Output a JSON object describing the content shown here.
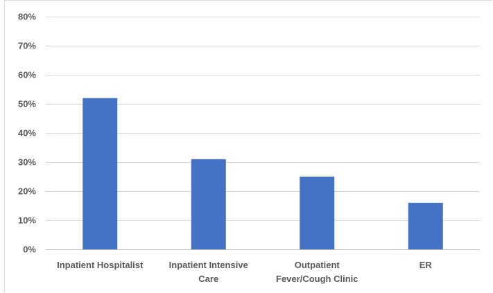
{
  "chart_data": {
    "type": "bar",
    "title": "",
    "xlabel": "",
    "ylabel": "",
    "categories": [
      [
        "Inpatient Hospitalist"
      ],
      [
        "Inpatient Intensive",
        "Care"
      ],
      [
        "Outpatient",
        "Fever/Cough Clinic"
      ],
      [
        "ER"
      ]
    ],
    "values": [
      52,
      31,
      25,
      16
    ],
    "value_format": "percent",
    "ylim": [
      0,
      80
    ],
    "yticks": [
      0,
      10,
      20,
      30,
      40,
      50,
      60,
      70,
      80
    ],
    "ytick_labels": [
      "0%",
      "10%",
      "20%",
      "30%",
      "40%",
      "50%",
      "60%",
      "70%",
      "80%"
    ],
    "grid": true,
    "legend": "none",
    "bar_color": "#4472c4"
  }
}
